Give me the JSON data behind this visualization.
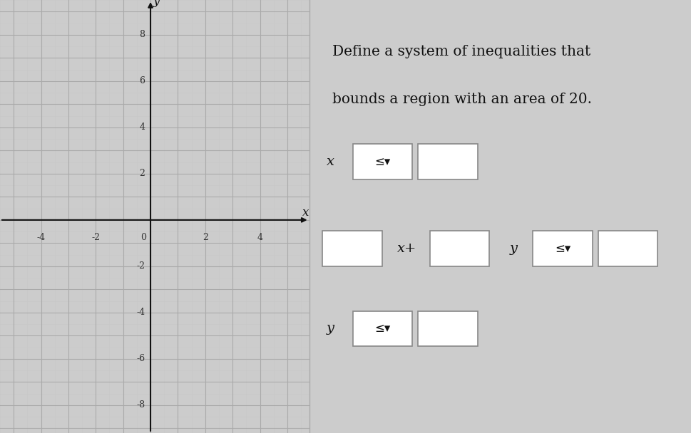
{
  "graph_bg": "#e4e4e4",
  "right_bg": "#cccccc",
  "axis_color": "#111111",
  "tick_labels_color": "#333333",
  "x_ticks": [
    -4,
    -2,
    0,
    2,
    4
  ],
  "y_ticks": [
    -8,
    -6,
    -4,
    -2,
    2,
    4,
    6,
    8
  ],
  "x_label": "x",
  "y_label": "y",
  "title_line1": "Define a system of inequalities that",
  "title_line2": "bounds a region with an area of 20.",
  "text_color": "#111111",
  "box_color": "#ffffff",
  "box_edge": "#888888",
  "divider_x": 0.447,
  "dropdown_text": "≤▾"
}
